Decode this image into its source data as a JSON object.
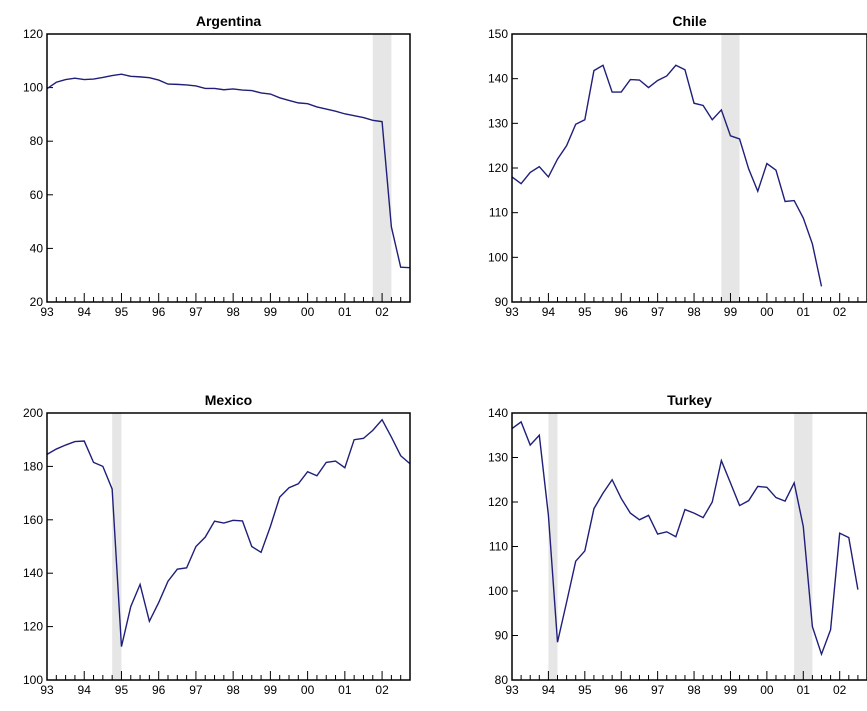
{
  "chart_data": [
    {
      "type": "line",
      "title": "Argentina",
      "xlabel": "",
      "ylabel": "",
      "x_start": 1993.0,
      "x_step": 0.25,
      "xlim": [
        1993.0,
        2002.75
      ],
      "ylim": [
        20,
        120
      ],
      "yticks": [
        20,
        40,
        60,
        80,
        100,
        120
      ],
      "xticks": [
        "93",
        "94",
        "95",
        "96",
        "97",
        "98",
        "99",
        "00",
        "01",
        "02"
      ],
      "shaded": [
        [
          2001.75,
          2002.25
        ]
      ],
      "grid": false,
      "series": [
        {
          "color": "#1f1f7a",
          "values": [
            99.6,
            102.0,
            103.0,
            103.5,
            103.0,
            103.2,
            103.8,
            104.5,
            105.0,
            104.2,
            104.0,
            103.7,
            102.8,
            101.3,
            101.2,
            101.0,
            100.6,
            99.7,
            99.7,
            99.2,
            99.5,
            99.1,
            98.9,
            98.0,
            97.6,
            96.2,
            95.2,
            94.3,
            94.0,
            92.8,
            92.0,
            91.2,
            90.2,
            89.5,
            88.8,
            87.8,
            87.3,
            48.0,
            33.0,
            32.8
          ]
        }
      ]
    },
    {
      "type": "line",
      "title": "Chile",
      "xlabel": "",
      "ylabel": "",
      "x_start": 1993.0,
      "x_step": 0.25,
      "xlim": [
        1993.0,
        2002.75
      ],
      "ylim": [
        90,
        150
      ],
      "yticks": [
        90,
        100,
        110,
        120,
        130,
        140,
        150
      ],
      "xticks": [
        "93",
        "94",
        "95",
        "96",
        "97",
        "98",
        "99",
        "00",
        "01",
        "02"
      ],
      "shaded": [
        [
          1998.75,
          1999.25
        ]
      ],
      "grid": false,
      "series": [
        {
          "color": "#1f1f7a",
          "values": [
            118.0,
            116.5,
            119.0,
            120.3,
            118.0,
            122.0,
            125.0,
            129.8,
            130.8,
            141.8,
            143.0,
            137.0,
            137.0,
            139.8,
            139.7,
            138.0,
            139.6,
            140.6,
            143.0,
            142.0,
            134.5,
            134.0,
            130.8,
            133.0,
            127.2,
            126.5,
            119.8,
            114.8,
            121.0,
            119.5,
            112.5,
            112.7,
            108.8,
            103.0,
            93.5
          ]
        }
      ]
    },
    {
      "type": "line",
      "title": "Mexico",
      "xlabel": "",
      "ylabel": "",
      "x_start": 1993.0,
      "x_step": 0.25,
      "xlim": [
        1993.0,
        2002.75
      ],
      "ylim": [
        100,
        200
      ],
      "yticks": [
        100,
        120,
        140,
        160,
        180,
        200
      ],
      "xticks": [
        "93",
        "94",
        "95",
        "96",
        "97",
        "98",
        "99",
        "00",
        "01",
        "02"
      ],
      "shaded": [
        [
          1994.75,
          1995.0
        ]
      ],
      "grid": false,
      "series": [
        {
          "color": "#1f1f7a",
          "values": [
            184.5,
            186.5,
            188.0,
            189.3,
            189.5,
            181.5,
            180.0,
            171.5,
            112.5,
            127.5,
            135.8,
            122.0,
            129.0,
            137.0,
            141.5,
            142.0,
            150.0,
            153.5,
            159.5,
            158.8,
            159.8,
            159.6,
            150.0,
            147.8,
            157.5,
            168.5,
            172.0,
            173.5,
            178.0,
            176.5,
            181.5,
            182.0,
            179.5,
            190.0,
            190.5,
            193.5,
            197.5,
            191.0,
            184.0,
            181.0
          ]
        }
      ]
    },
    {
      "type": "line",
      "title": "Turkey",
      "xlabel": "",
      "ylabel": "",
      "x_start": 1993.0,
      "x_step": 0.25,
      "xlim": [
        1993.0,
        2002.75
      ],
      "ylim": [
        80,
        140
      ],
      "yticks": [
        80,
        90,
        100,
        110,
        120,
        130,
        140
      ],
      "xticks": [
        "93",
        "94",
        "95",
        "96",
        "97",
        "98",
        "99",
        "00",
        "01",
        "02"
      ],
      "shaded": [
        [
          1994.0,
          1994.25
        ],
        [
          2000.75,
          2001.25
        ]
      ],
      "grid": false,
      "series": [
        {
          "color": "#1f1f7a",
          "values": [
            136.5,
            138.0,
            132.8,
            135.0,
            117.0,
            88.5,
            97.5,
            106.7,
            109.0,
            118.5,
            122.0,
            125.0,
            120.8,
            117.5,
            116.0,
            117.0,
            112.8,
            113.3,
            112.2,
            118.3,
            117.5,
            116.5,
            120.0,
            129.3,
            124.3,
            119.2,
            120.3,
            123.5,
            123.3,
            121.0,
            120.2,
            124.3,
            114.5,
            92.0,
            85.8,
            91.3,
            113.0,
            112.0,
            100.3
          ]
        }
      ]
    }
  ]
}
